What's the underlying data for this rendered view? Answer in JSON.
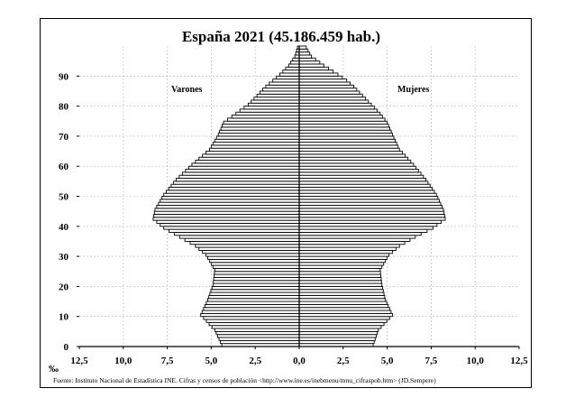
{
  "chart_data": {
    "type": "bar",
    "orientation": "horizontal-population-pyramid",
    "title": "España 2021 (45.186.459 hab.)",
    "xlabel": "‰",
    "ylabel": "",
    "x_ticks": [
      "12,5",
      "10,0",
      "7,5",
      "5,0",
      "2,5",
      "0,0",
      "2,5",
      "5,0",
      "7,5",
      "10,0",
      "12,5"
    ],
    "y_ticks": [
      "0",
      "10",
      "20",
      "30",
      "40",
      "50",
      "60",
      "70",
      "80",
      "90"
    ],
    "xlim": [
      -12.5,
      12.5
    ],
    "ylim": [
      0,
      100
    ],
    "grid": true,
    "source_note": "Fuente: Instituto Nacional de Estadística INE. Cifras y censos de población <http://www.ine.es/inebmenu/mnu_cifraspob.htm> (JD.Sempere)",
    "series": [
      {
        "name": "Varones",
        "age_key": [
          [
            0,
            4.4
          ],
          [
            5,
            4.8
          ],
          [
            10,
            5.6
          ],
          [
            15,
            5.2
          ],
          [
            20,
            4.9
          ],
          [
            25,
            4.8
          ],
          [
            30,
            5.3
          ],
          [
            33,
            5.9
          ],
          [
            36,
            6.8
          ],
          [
            39,
            7.7
          ],
          [
            42,
            8.3
          ],
          [
            45,
            8.2
          ],
          [
            50,
            7.7
          ],
          [
            55,
            7.0
          ],
          [
            60,
            6.1
          ],
          [
            65,
            5.1
          ],
          [
            70,
            4.6
          ],
          [
            74,
            4.3
          ],
          [
            77,
            3.6
          ],
          [
            80,
            2.9
          ],
          [
            83,
            2.4
          ],
          [
            86,
            1.9
          ],
          [
            88,
            1.5
          ],
          [
            90,
            1.1
          ],
          [
            93,
            0.6
          ],
          [
            96,
            0.25
          ],
          [
            100,
            0.05
          ]
        ],
        "values": [
          4.4,
          4.48,
          4.56,
          4.64,
          4.72,
          4.8,
          4.96,
          5.12,
          5.28,
          5.44,
          5.6,
          5.52,
          5.44,
          5.36,
          5.28,
          5.2,
          5.14,
          5.08,
          5.02,
          4.96,
          4.9,
          4.88,
          4.86,
          4.84,
          4.82,
          4.8,
          4.9,
          5.0,
          5.1,
          5.2,
          5.3,
          5.5,
          5.7,
          5.9,
          6.2,
          6.5,
          6.8,
          7.1,
          7.4,
          7.7,
          7.9,
          8.1,
          8.3,
          8.27,
          8.23,
          8.2,
          8.1,
          8.0,
          7.9,
          7.8,
          7.7,
          7.56,
          7.42,
          7.28,
          7.14,
          7.0,
          6.82,
          6.64,
          6.46,
          6.28,
          6.1,
          5.9,
          5.7,
          5.5,
          5.3,
          5.1,
          5.0,
          4.9,
          4.8,
          4.7,
          4.6,
          4.53,
          4.45,
          4.38,
          4.3,
          4.07,
          3.83,
          3.6,
          3.37,
          3.13,
          2.9,
          2.73,
          2.57,
          2.4,
          2.23,
          2.07,
          1.9,
          1.7,
          1.5,
          1.3,
          1.1,
          0.93,
          0.77,
          0.6,
          0.48,
          0.37,
          0.25,
          0.2,
          0.15,
          0.1
        ]
      },
      {
        "name": "Mujeres",
        "age_key": [
          [
            0,
            4.2
          ],
          [
            5,
            4.5
          ],
          [
            10,
            5.3
          ],
          [
            15,
            4.9
          ],
          [
            20,
            4.7
          ],
          [
            25,
            4.6
          ],
          [
            30,
            5.1
          ],
          [
            33,
            5.7
          ],
          [
            36,
            6.6
          ],
          [
            39,
            7.6
          ],
          [
            42,
            8.3
          ],
          [
            45,
            8.2
          ],
          [
            50,
            7.8
          ],
          [
            55,
            7.2
          ],
          [
            60,
            6.5
          ],
          [
            65,
            5.7
          ],
          [
            70,
            5.3
          ],
          [
            74,
            5.0
          ],
          [
            77,
            4.6
          ],
          [
            80,
            4.1
          ],
          [
            83,
            3.6
          ],
          [
            86,
            3.1
          ],
          [
            88,
            2.7
          ],
          [
            90,
            2.2
          ],
          [
            93,
            1.4
          ],
          [
            96,
            0.7
          ],
          [
            100,
            0.1
          ]
        ],
        "values": [
          4.2,
          4.26,
          4.32,
          4.38,
          4.44,
          4.5,
          4.66,
          4.82,
          4.98,
          5.14,
          5.3,
          5.22,
          5.14,
          5.06,
          4.98,
          4.9,
          4.86,
          4.82,
          4.78,
          4.74,
          4.7,
          4.68,
          4.66,
          4.64,
          4.62,
          4.6,
          4.7,
          4.8,
          4.9,
          5.0,
          5.1,
          5.3,
          5.5,
          5.7,
          6.0,
          6.3,
          6.6,
          6.93,
          7.27,
          7.6,
          7.83,
          8.07,
          8.3,
          8.27,
          8.23,
          8.2,
          8.12,
          8.04,
          7.96,
          7.88,
          7.8,
          7.68,
          7.56,
          7.44,
          7.32,
          7.2,
          7.06,
          6.92,
          6.78,
          6.64,
          6.5,
          6.34,
          6.18,
          6.02,
          5.86,
          5.7,
          5.62,
          5.54,
          5.46,
          5.38,
          5.3,
          5.23,
          5.15,
          5.08,
          5.0,
          4.87,
          4.73,
          4.6,
          4.43,
          4.27,
          4.1,
          3.93,
          3.77,
          3.6,
          3.43,
          3.27,
          3.1,
          2.9,
          2.7,
          2.45,
          2.2,
          1.93,
          1.67,
          1.4,
          1.17,
          0.93,
          0.7,
          0.6,
          0.5,
          0.4
        ]
      }
    ]
  }
}
